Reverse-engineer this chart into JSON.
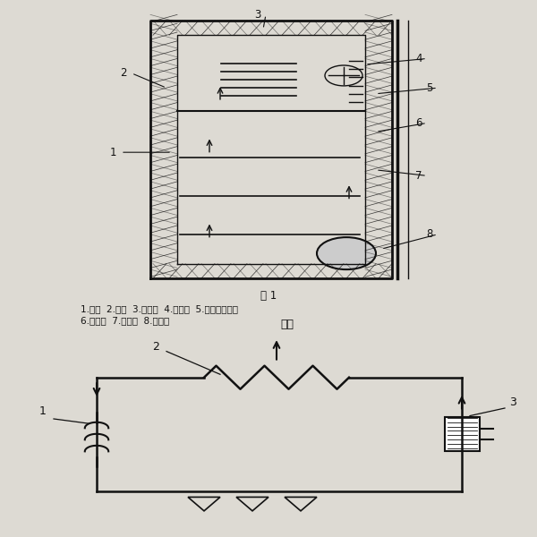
{
  "bg_color": "#dddad3",
  "fig_title_top": "图 1",
  "caption_line1": "1.下门  2.上门  3.蒸发器  4.冷冻室  5.冷风循环风扇",
  "caption_line2": "6.冷凝器  7.冷藏室  8.压缩机",
  "circuit_label_fare": "放热",
  "line_color": "#111111",
  "text_color": "#111111"
}
